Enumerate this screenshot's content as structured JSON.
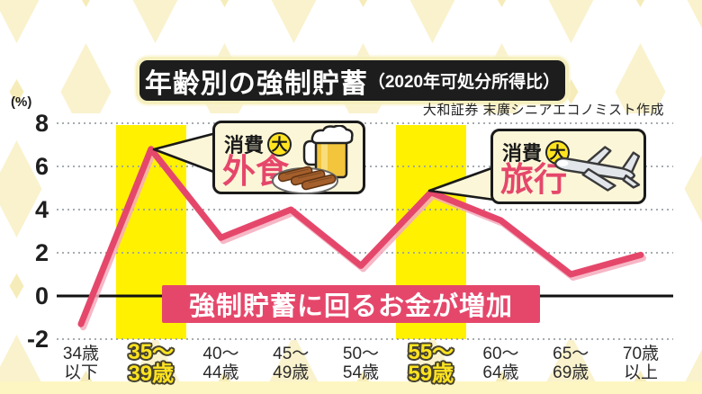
{
  "title": {
    "main": "年齢別の強制貯蓄",
    "sub": "（2020年可処分所得比）"
  },
  "credit": "大和証券 末廣シニアエコノミスト作成",
  "y_axis": {
    "unit": "(%)"
  },
  "banner": {
    "text": "強制貯蓄に回るお金が増加"
  },
  "callouts": {
    "dining": {
      "label": "消費",
      "badge": "大",
      "highlight": "外食"
    },
    "travel": {
      "label": "消費",
      "badge": "大",
      "highlight": "旅行"
    }
  },
  "chart_data": {
    "type": "line",
    "title": "年齢別の強制貯蓄（2020年可処分所得比）",
    "unit": "%",
    "categories": [
      "34歳以下",
      "35〜39歳",
      "40〜44歳",
      "45〜49歳",
      "50〜54歳",
      "55〜59歳",
      "60〜64歳",
      "65〜69歳",
      "70歳以上"
    ],
    "category_lines": [
      [
        "34歳",
        "以下"
      ],
      [
        "35〜",
        "39歳"
      ],
      [
        "40〜",
        "44歳"
      ],
      [
        "45〜",
        "49歳"
      ],
      [
        "50〜",
        "54歳"
      ],
      [
        "55〜",
        "59歳"
      ],
      [
        "60〜",
        "64歳"
      ],
      [
        "65〜",
        "69歳"
      ],
      [
        "70歳",
        "以上"
      ]
    ],
    "values": [
      -1.3,
      6.8,
      2.7,
      4.0,
      1.4,
      4.8,
      3.5,
      1.0,
      1.9
    ],
    "ylim": [
      -2,
      8
    ],
    "yticks": [
      8,
      6,
      4,
      2,
      0,
      -2
    ],
    "highlighted_category_indexes": [
      1,
      5
    ],
    "grid": "dotted-horizontal",
    "legend": "none",
    "line_color": "#e5476b",
    "line_shadow_color": "#f5aabc",
    "highlight_band_color": "#fff100",
    "zero_line_color": "#111111",
    "annotations": [
      "消費大 外食 (35〜39歳のピーク)",
      "消費大 旅行 (55〜59歳のピーク)",
      "強制貯蓄に回るお金が増加"
    ]
  },
  "colors": {
    "accent_pink": "#e5476b",
    "band_yellow": "#fff100",
    "badge_yellow": "#ffe41f",
    "callout_bg": "#fcf6d8",
    "title_bg": "#1d1d1d"
  }
}
